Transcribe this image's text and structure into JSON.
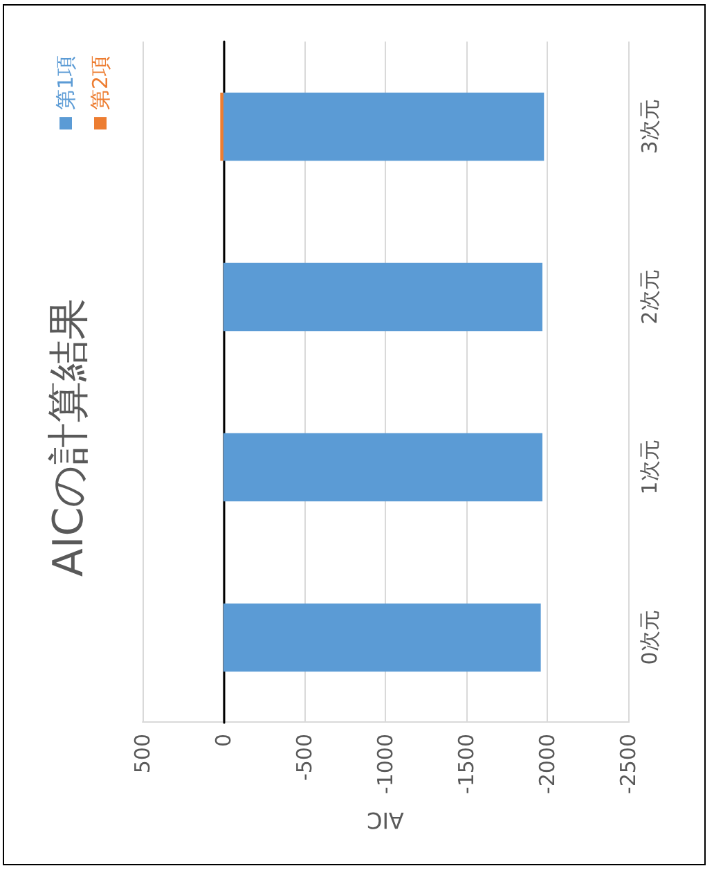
{
  "chart_data": {
    "type": "bar",
    "orientation": "horizontal",
    "title": "AICの計算結果",
    "xlabel": "AIC",
    "categories": [
      "3次元",
      "2次元",
      "1次元",
      "0次元"
    ],
    "series": [
      {
        "name": "第1項",
        "color": "#5b9bd5",
        "values": [
          -1980,
          -1970,
          -1970,
          -1960
        ]
      },
      {
        "name": "第2項",
        "color": "#ed7d31",
        "values": [
          20,
          0,
          0,
          0
        ]
      }
    ],
    "stacked": true,
    "xlim": [
      500,
      -2500
    ],
    "xticks": [
      500,
      0,
      -500,
      -1000,
      -1500,
      -2000,
      -2500
    ],
    "grid": "x",
    "legend": "top left"
  }
}
